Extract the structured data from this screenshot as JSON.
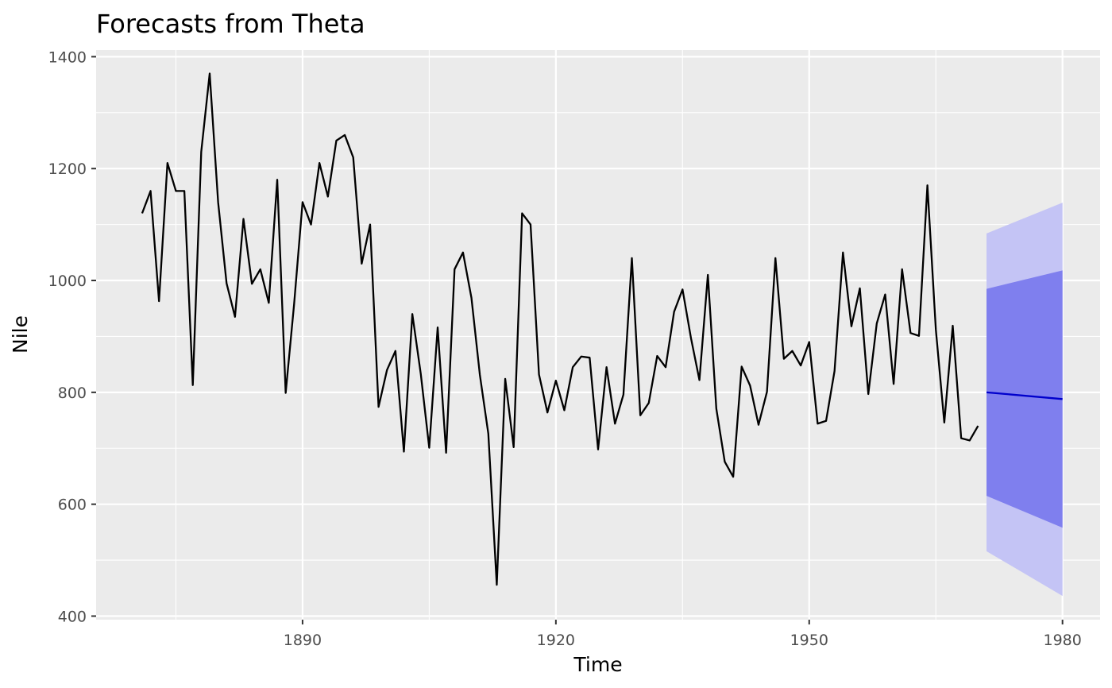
{
  "chart_data": {
    "type": "line",
    "title": "Forecasts from Theta",
    "xlabel": "Time",
    "ylabel": "Nile",
    "xlim": [
      1865.55,
      1984.45
    ],
    "ylim": [
      393.6,
      1411.9
    ],
    "x_ticks": [
      1890,
      1920,
      1950,
      1980
    ],
    "x_tick_labels": [
      "1890",
      "1920",
      "1950",
      "1980"
    ],
    "y_ticks": [
      400,
      600,
      800,
      1000,
      1200,
      1400
    ],
    "y_tick_labels": [
      "400",
      "600",
      "800",
      "1000",
      "1200",
      "1400"
    ],
    "grid": true,
    "background": "#ebebeb",
    "colors": {
      "observed": "#000000",
      "forecast": "#0000cc",
      "band80": "#7f7fee",
      "band95": "#c4c4f5",
      "grid": "#ffffff"
    },
    "series": [
      {
        "x_start": 1871,
        "values": [
          1120,
          1160,
          963,
          1210,
          1160,
          1160,
          813,
          1230,
          1370,
          1140,
          995,
          935,
          1110,
          994,
          1020,
          960,
          1180,
          799,
          958,
          1140,
          1100,
          1210,
          1150,
          1250,
          1260,
          1220,
          1030,
          1100,
          774,
          840,
          874,
          694,
          940,
          833,
          701,
          916,
          692,
          1020,
          1050,
          969,
          831,
          726,
          456,
          824,
          702,
          1120,
          1100,
          832,
          764,
          821,
          768,
          845,
          864,
          862,
          698,
          845,
          744,
          796,
          1040,
          759,
          781,
          865,
          845,
          944,
          984,
          897,
          822,
          1010,
          771,
          676,
          649,
          846,
          812,
          742,
          801,
          1040,
          860,
          874,
          848,
          890,
          744,
          749,
          838,
          1050,
          918,
          986,
          797,
          923,
          975,
          815,
          1020,
          906,
          901,
          1170,
          912,
          746,
          919,
          718,
          714,
          740
        ]
      },
      {
        "x": [
          1971,
          1980
        ],
        "values": [
          800,
          788
        ]
      }
    ],
    "bands": [
      {
        "x": [
          1971,
          1980
        ],
        "lower": [
          516,
          436
        ],
        "upper": [
          1084,
          1139
        ]
      },
      {
        "x": [
          1971,
          1980
        ],
        "lower": [
          615,
          558
        ],
        "upper": [
          985,
          1018
        ]
      }
    ]
  }
}
